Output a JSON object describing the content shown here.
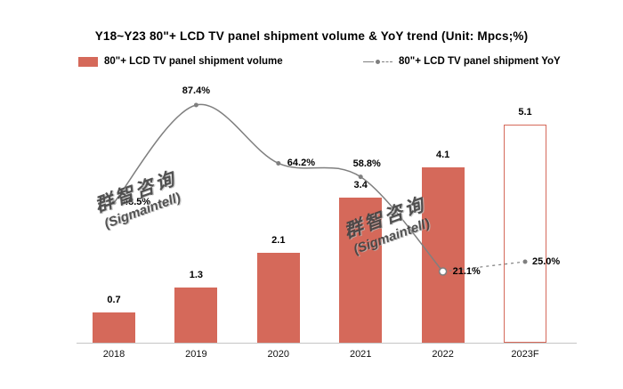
{
  "title": "Y18~Y23 80\"+ LCD TV panel shipment volume & YoY trend (Unit: Mpcs;%)",
  "legend": {
    "volume": "80\"+ LCD TV panel shipment volume",
    "yoy": "80\"+ LCD TV panel shipment YoY"
  },
  "watermark": {
    "line1": "群智咨询",
    "line2": "(Sigmaintell)"
  },
  "colors": {
    "bar": "#D5695A",
    "bar_forecast_fill": "#FFFFFF",
    "bar_forecast_border": "#D5695A",
    "line": "#7F7F7F",
    "text": "#000000",
    "axis": "#C6C6C6"
  },
  "chart_data": {
    "type": "bar+line",
    "title": "Y18~Y23 80\"+ LCD TV panel shipment volume & YoY trend (Unit: Mpcs;%)",
    "categories": [
      "2018",
      "2019",
      "2020",
      "2021",
      "2022",
      "2023F"
    ],
    "series": [
      {
        "name": "80\"+ LCD TV panel shipment volume",
        "type": "bar",
        "unit": "Mpcs",
        "values": [
          0.7,
          1.3,
          2.1,
          3.4,
          4.1,
          5.1
        ],
        "value_labels": [
          "0.7",
          "1.3",
          "2.1",
          "3.4",
          "4.1",
          "5.1"
        ],
        "forecast_index": 5
      },
      {
        "name": "80\"+ LCD TV panel shipment YoY",
        "type": "line",
        "unit": "%",
        "values": [
          48.5,
          87.4,
          64.2,
          58.8,
          21.1,
          25.0
        ],
        "value_labels": [
          "48.5%",
          "87.4%",
          "64.2%",
          "58.8%",
          "21.1%",
          "25.0%"
        ],
        "dashed_from_index": 4
      }
    ],
    "xlabel": "",
    "ylabel": "",
    "legend_position": "top",
    "grid": false,
    "bar_ylim": [
      0,
      5.5
    ],
    "line_ylim_pct": [
      0,
      100
    ]
  }
}
